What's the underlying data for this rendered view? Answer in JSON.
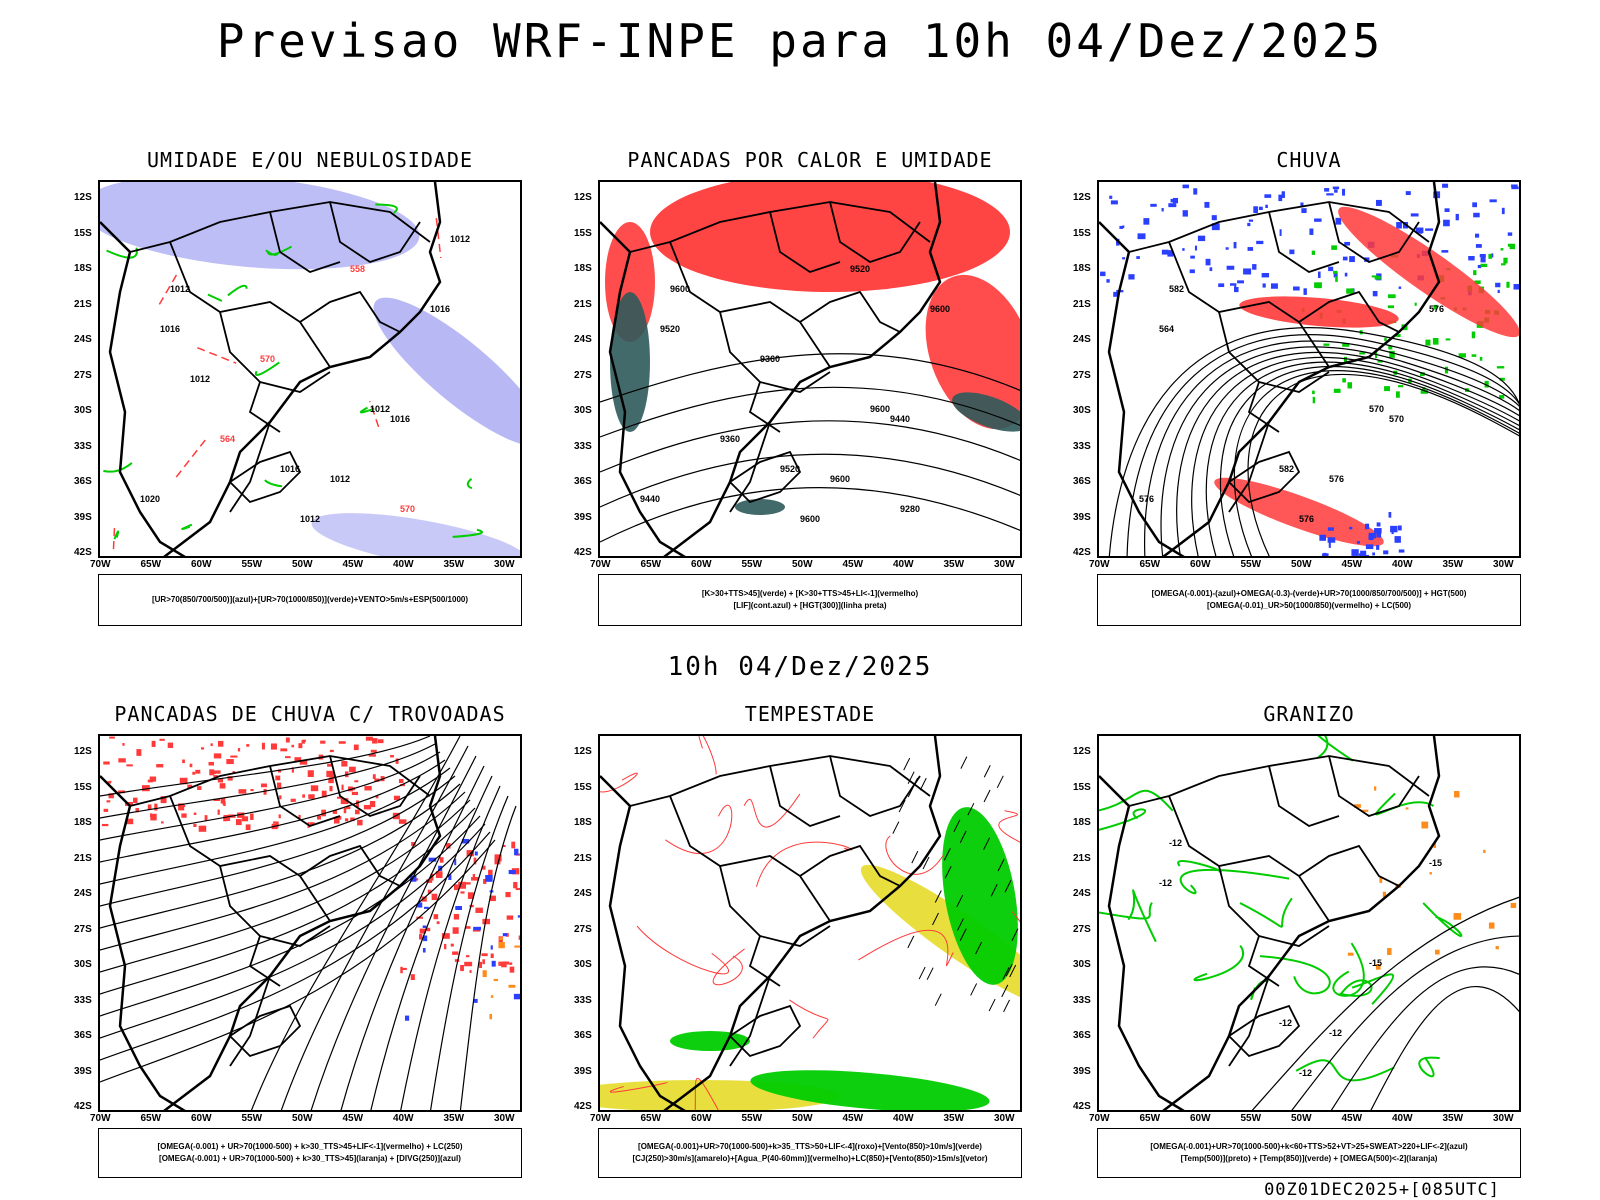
{
  "title": "Previsao WRF-INPE  para 10h 04/Dez/2025",
  "middle_title": "10h 04/Dez/2025",
  "footer": "00Z01DEC2025+[085UTC]",
  "lat_ticks": [
    "12S",
    "15S",
    "18S",
    "21S",
    "24S",
    "27S",
    "30S",
    "33S",
    "36S",
    "39S",
    "42S"
  ],
  "lon_ticks": [
    "70W",
    "65W",
    "60W",
    "55W",
    "50W",
    "45W",
    "40W",
    "35W",
    "30W"
  ],
  "colors": {
    "blue": "#2b3fff",
    "light_blue": "#8888ee",
    "green": "#00cc00",
    "red": "#ff3a3a",
    "orange": "#ff8c1a",
    "yellow": "#e6dc2a",
    "dark_teal": "#2f5a5a",
    "purple": "#cc00cc"
  },
  "panels": [
    {
      "title": "UMIDADE E/OU NEBULOSIDADE",
      "caption": [
        "[UR>70(850/700/500)](azul)+[UR>70(1000/850)](verde)+VENTO>5m/s+ESP(500/1000)"
      ],
      "contour_labels": [
        "1012",
        "1012",
        "1012",
        "1012",
        "1016",
        "1016",
        "1016",
        "1016",
        "1020",
        "570",
        "570",
        "564",
        "558",
        "1012",
        "1012"
      ]
    },
    {
      "title": "PANCADAS POR CALOR E UMIDADE",
      "caption": [
        "[K>30+TTS>45](verde) + [K>30+TTS>45+LI<-1](vermelho)",
        "[LIF](cont.azul) + [HGT(300)](linha preta)"
      ],
      "contour_labels": [
        "9600",
        "9600",
        "9600",
        "9600",
        "9600",
        "9520",
        "9520",
        "9440",
        "9440",
        "9360",
        "9280",
        "9360",
        "9520"
      ]
    },
    {
      "title": "CHUVA",
      "caption": [
        "[OMEGA(-0.001)-(azul)+OMEGA(-0.3)-(verde)+UR>70(1000/850/700/500)] + HGT(500)",
        "[OMEGA(-0.01)_UR>50(1000/850)(vermelho) + LC(500)"
      ],
      "contour_labels": [
        "582",
        "576",
        "576",
        "570",
        "576",
        "582",
        "564",
        "570",
        "576"
      ]
    },
    {
      "title": "PANCADAS DE CHUVA C/ TROVOADAS",
      "caption": [
        "[OMEGA(-0.001) + UR>70(1000-500) + k>30_TTS>45+LIF<-1](vermelho) + LC(250)",
        "[OMEGA(-0.001) + UR>70(1000-500) + k>30_TTS>45](laranja) + [DIVG(250)](azul)"
      ],
      "contour_labels": []
    },
    {
      "title": "TEMPESTADE",
      "caption": [
        "[OMEGA(-0.001)+UR>70(1000-500)+k>35_TTS>50+LIF<-4](roxo)+[Vento(850)>10m/s](verde)",
        "[CJ(250)>30m/s](amarelo)+[Agua_P(40-60mm)](vermelho)+LC(850)+[Vento(850)>15m/s](vetor)"
      ],
      "contour_labels": []
    },
    {
      "title": "GRANIZO",
      "caption": [
        "[OMEGA(-0.001)+UR>70(1000-500)+k<60+TTS>52+VT>25+SWEAT>220+LIF<-2](azul)",
        "[Temp(500)](preto) + [Temp(850)](verde) + [OMEGA(500)<-2](laranja)"
      ],
      "contour_labels": [
        "-12",
        "-12",
        "-12",
        "-15",
        "-15",
        "-12",
        "-12"
      ]
    }
  ]
}
